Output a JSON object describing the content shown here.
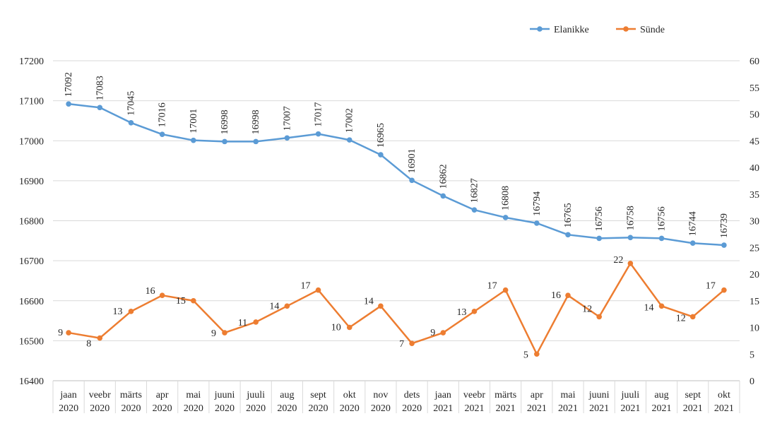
{
  "chart_data": {
    "type": "line",
    "categories": [
      [
        "jaan",
        "2020"
      ],
      [
        "veebr",
        "2020"
      ],
      [
        "märts",
        "2020"
      ],
      [
        "apr",
        "2020"
      ],
      [
        "mai",
        "2020"
      ],
      [
        "juuni",
        "2020"
      ],
      [
        "juuli",
        "2020"
      ],
      [
        "aug",
        "2020"
      ],
      [
        "sept",
        "2020"
      ],
      [
        "okt",
        "2020"
      ],
      [
        "nov",
        "2020"
      ],
      [
        "dets",
        "2020"
      ],
      [
        "jaan",
        "2021"
      ],
      [
        "veebr",
        "2021"
      ],
      [
        "märts",
        "2021"
      ],
      [
        "apr",
        "2021"
      ],
      [
        "mai",
        "2021"
      ],
      [
        "juuni",
        "2021"
      ],
      [
        "juuli",
        "2021"
      ],
      [
        "aug",
        "2021"
      ],
      [
        "sept",
        "2021"
      ],
      [
        "okt",
        "2021"
      ]
    ],
    "series": [
      {
        "name": "Elanikke",
        "axis": "left",
        "color": "#5B9BD5",
        "values": [
          17092,
          17083,
          17045,
          17016,
          17001,
          16998,
          16998,
          17007,
          17017,
          17002,
          16965,
          16901,
          16862,
          16827,
          16808,
          16794,
          16765,
          16756,
          16758,
          16756,
          16744,
          16739
        ]
      },
      {
        "name": "Sünde",
        "axis": "right",
        "color": "#ED7D31",
        "values": [
          9,
          8,
          13,
          16,
          15,
          9,
          11,
          14,
          17,
          10,
          14,
          7,
          9,
          13,
          17,
          5,
          16,
          12,
          22,
          14,
          12,
          17
        ]
      }
    ],
    "y_left": {
      "min": 16400,
      "max": 17200,
      "step": 100,
      "ticks": [
        16400,
        16500,
        16600,
        16700,
        16800,
        16900,
        17000,
        17100,
        17200
      ]
    },
    "y_right": {
      "min": 0,
      "max": 60,
      "step": 5,
      "ticks": [
        0,
        5,
        10,
        15,
        20,
        25,
        30,
        35,
        40,
        45,
        50,
        55,
        60
      ]
    },
    "grid": true,
    "legend_position": "top-right",
    "title": "",
    "xlabel": "",
    "ylabel": ""
  }
}
